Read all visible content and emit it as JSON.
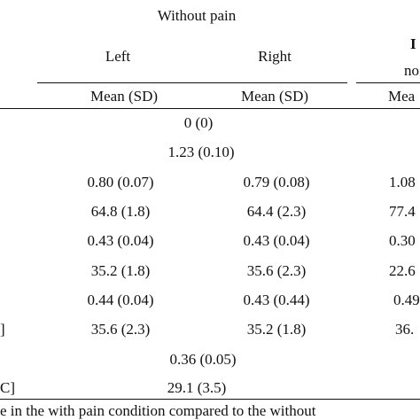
{
  "header": {
    "group_without_pain": "Without pain",
    "col_left": "Left",
    "col_right": "Right",
    "group_partial": "I",
    "subhead_partial": "no",
    "stat_mean_sd": "Mean (SD)",
    "stat_partial": "Mea"
  },
  "rows": [
    {
      "left_label": "",
      "merged": "0 (0)",
      "left": "",
      "right": "",
      "third": ""
    },
    {
      "left_label": "",
      "merged": "1.23 (0.10)",
      "left": "",
      "right": "",
      "third": ""
    },
    {
      "left_label": "",
      "merged": "",
      "left": "0.80 (0.07)",
      "right": "0.79 (0.08)",
      "third": "1.08"
    },
    {
      "left_label": "",
      "merged": "",
      "left": "64.8 (1.8)",
      "right": "64.4 (2.3)",
      "third": "77.4"
    },
    {
      "left_label": "",
      "merged": "",
      "left": "0.43 (0.04)",
      "right": "0.43 (0.04)",
      "third": "0.30"
    },
    {
      "left_label": "",
      "merged": "",
      "left": "35.2 (1.8)",
      "right": "35.6 (2.3)",
      "third": "22.6"
    },
    {
      "left_label": "",
      "merged": "",
      "left": "0.44 (0.04)",
      "right": "0.43 (0.44)",
      "third": "0.49"
    },
    {
      "left_label": "]",
      "merged": "",
      "left": "35.6 (2.3)",
      "right": "35.2 (1.8)",
      "third": "36."
    },
    {
      "left_label": "",
      "merged": "0.36 (0.05)",
      "left": "",
      "right": "",
      "third": ""
    },
    {
      "left_label": "C]",
      "merged": "29.1 (3.5)",
      "left": "",
      "right": "",
      "third": ""
    }
  ],
  "footnote": "e in the with pain condition compared to the without"
}
